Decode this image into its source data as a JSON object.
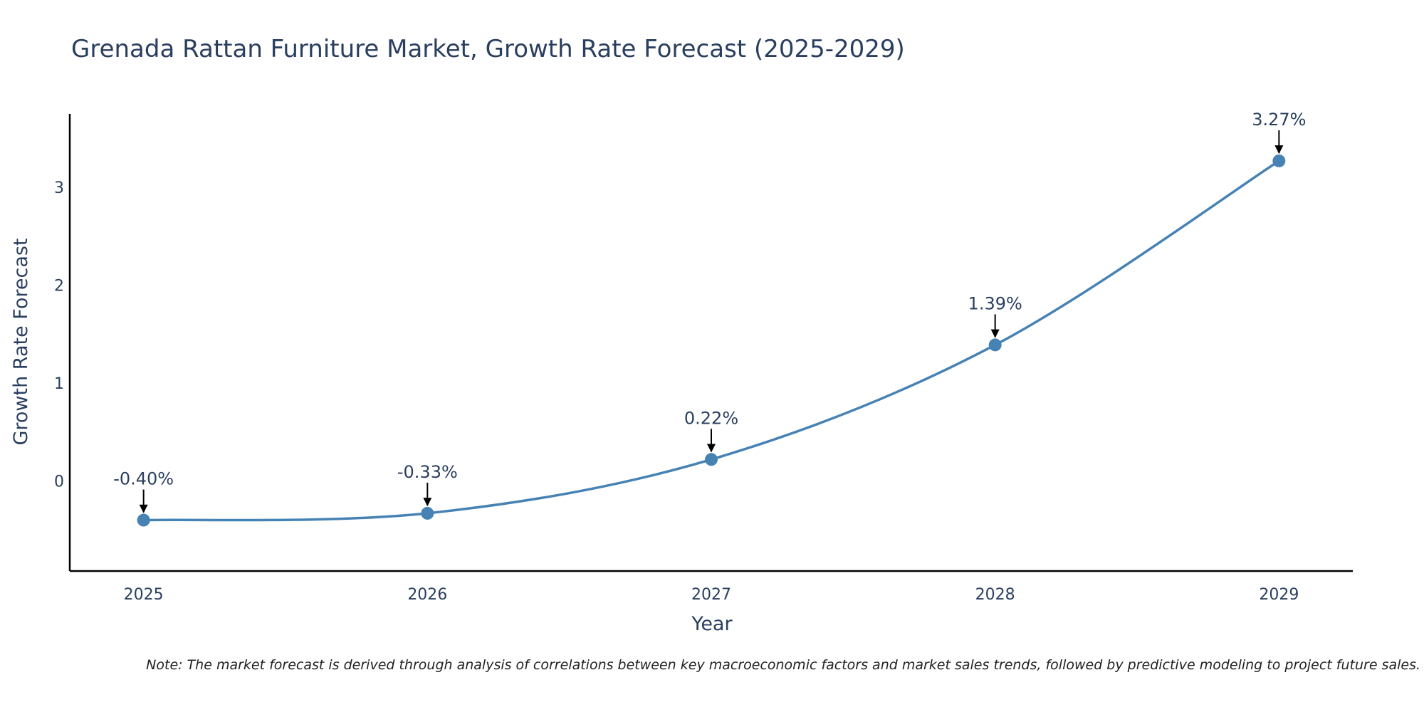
{
  "chart_data": {
    "type": "line",
    "title": "Grenada Rattan Furniture Market, Growth Rate Forecast (2025-2029)",
    "xlabel": "Year",
    "ylabel": "Growth Rate Forecast",
    "x": [
      2025,
      2026,
      2027,
      2028,
      2029
    ],
    "x_tick_labels": [
      "2025",
      "2026",
      "2027",
      "2028",
      "2029"
    ],
    "series": [
      {
        "values": [
          -0.4,
          -0.33,
          0.22,
          1.39,
          3.27
        ]
      }
    ],
    "data_labels": [
      "-0.40%",
      "-0.33%",
      "0.22%",
      "1.39%",
      "3.27%"
    ],
    "y_ticks": [
      0,
      1,
      2,
      3
    ],
    "y_tick_labels": [
      "0",
      "1",
      "2",
      "3"
    ],
    "xlim": [
      2024.74,
      2029.26
    ],
    "ylim": [
      -0.92,
      3.75
    ],
    "grid": false,
    "line_shape": "spline",
    "colors": {
      "line": "#4682b4",
      "marker": "#4682b4",
      "axis": "#000000",
      "text": "#2a3f5f"
    }
  },
  "note": "Note: The market forecast is derived through analysis of correlations between key macroeconomic factors and market sales trends, followed by predictive modeling to project future sales."
}
